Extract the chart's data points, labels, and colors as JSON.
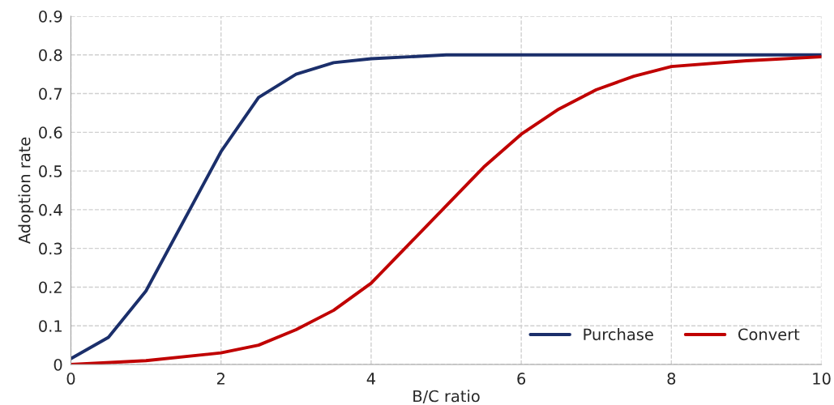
{
  "chart_data": {
    "type": "line",
    "xlabel": "B/C ratio",
    "ylabel": "Adoption rate",
    "xlim": [
      0,
      10
    ],
    "xticks": [
      0,
      2,
      4,
      6,
      8,
      10
    ],
    "ylim": [
      0,
      0.9
    ],
    "yticks": [
      0,
      0.1,
      0.2,
      0.3,
      0.4,
      0.5,
      0.6,
      0.7,
      0.8,
      0.9
    ],
    "grid": true,
    "legend": "bottom right",
    "line_style": "solid",
    "marker": "none",
    "series": [
      {
        "name": "Purchase",
        "color": "#1b2f6b",
        "x": [
          0,
          0.5,
          1,
          1.5,
          2,
          2.5,
          3,
          3.5,
          4,
          5,
          6,
          8,
          10
        ],
        "values": [
          0.015,
          0.07,
          0.19,
          0.37,
          0.55,
          0.69,
          0.75,
          0.78,
          0.79,
          0.8,
          0.8,
          0.8,
          0.8
        ]
      },
      {
        "name": "Convert",
        "color": "#c00000",
        "x": [
          0,
          1,
          2,
          2.5,
          3,
          3.5,
          4,
          4.5,
          5,
          5.5,
          6,
          6.5,
          7,
          7.5,
          8,
          9,
          10
        ],
        "values": [
          0,
          0.01,
          0.03,
          0.05,
          0.09,
          0.14,
          0.21,
          0.31,
          0.41,
          0.51,
          0.595,
          0.66,
          0.71,
          0.745,
          0.77,
          0.785,
          0.795
        ]
      }
    ]
  }
}
